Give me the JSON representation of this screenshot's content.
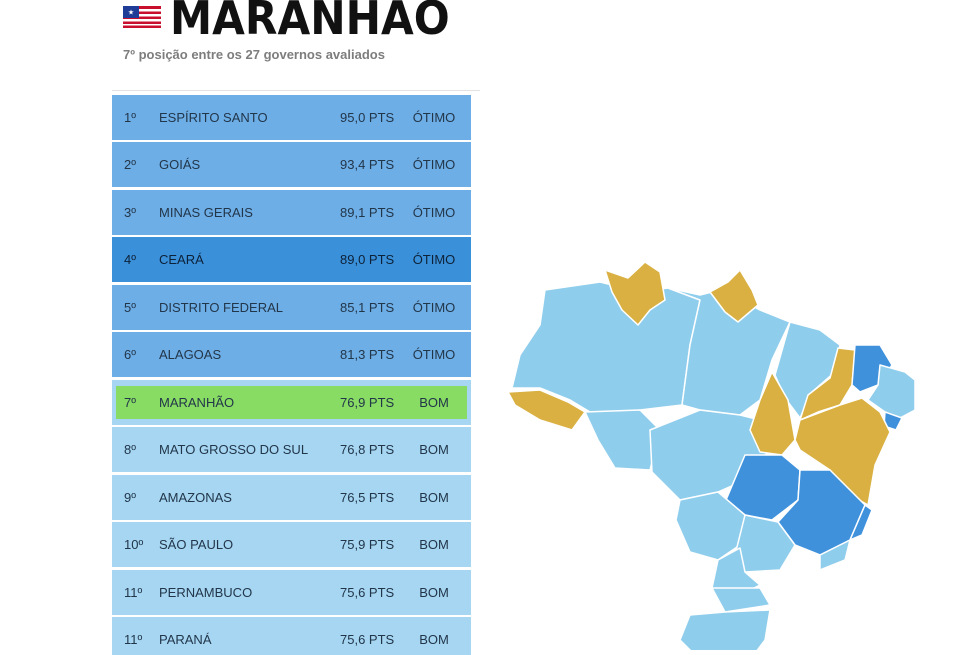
{
  "header": {
    "title": "MARANHÃO",
    "subtitle": "7º posição entre os 27 governos avaliados"
  },
  "colors": {
    "row_top": "#6eaee6",
    "row_mid": "#8ac4ec",
    "row_light": "#a6d6f2",
    "row_dark": "#3b90da",
    "row_highlight": "#88dc63",
    "map_light": "#8fcdec",
    "map_dark": "#3f91dc",
    "map_gold": "#d9b041"
  },
  "ranking": [
    {
      "rank": "1º",
      "state": "ESPÍRITO SANTO",
      "points": "95,0 PTS",
      "status": "ÓTIMO"
    },
    {
      "rank": "2º",
      "state": "GOIÁS",
      "points": "93,4 PTS",
      "status": "ÓTIMO"
    },
    {
      "rank": "3º",
      "state": "MINAS GERAIS",
      "points": "89,1 PTS",
      "status": "ÓTIMO"
    },
    {
      "rank": "4º",
      "state": "CEARÁ",
      "points": "89,0 PTS",
      "status": "ÓTIMO"
    },
    {
      "rank": "5º",
      "state": "DISTRITO FEDERAL",
      "points": "85,1 PTS",
      "status": "ÓTIMO"
    },
    {
      "rank": "6º",
      "state": "ALAGOAS",
      "points": "81,3 PTS",
      "status": "ÓTIMO"
    },
    {
      "rank": "7º",
      "state": "MARANHÃO",
      "points": "76,9 PTS",
      "status": "BOM"
    },
    {
      "rank": "8º",
      "state": "MATO GROSSO DO SUL",
      "points": "76,8 PTS",
      "status": "BOM"
    },
    {
      "rank": "9º",
      "state": "AMAZONAS",
      "points": "76,5 PTS",
      "status": "BOM"
    },
    {
      "rank": "10º",
      "state": "SÃO PAULO",
      "points": "75,9 PTS",
      "status": "BOM"
    },
    {
      "rank": "11º",
      "state": "PERNAMBUCO",
      "points": "75,6 PTS",
      "status": "BOM"
    },
    {
      "rank": "11º",
      "state": "PARANÁ",
      "points": "75,6 PTS",
      "status": "BOM"
    }
  ]
}
